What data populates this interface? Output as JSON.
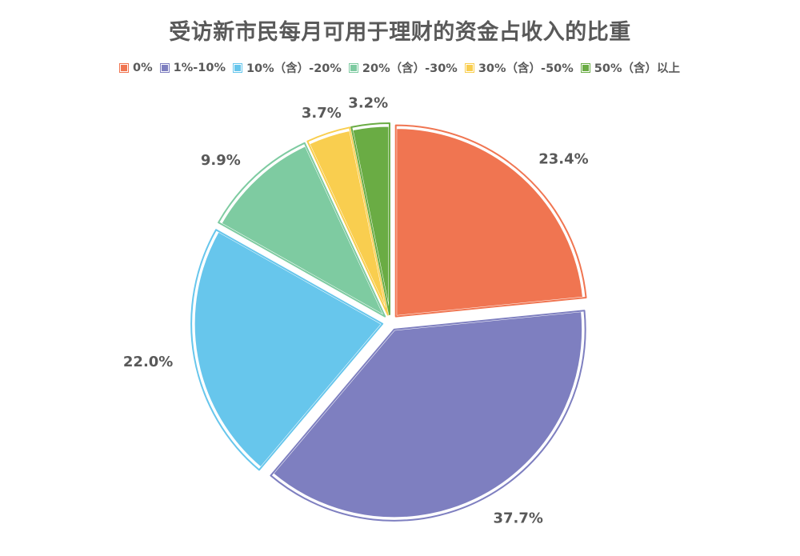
{
  "chart_data": {
    "type": "pie",
    "title": "受访新市民每月可用于理财的资金占收入的比重",
    "legend_position": "top",
    "categories": [
      "0%",
      "1%-10%",
      "10%（含）-20%",
      "20%（含）-30%",
      "30%（含）-50%",
      "50%（含）以上"
    ],
    "values": [
      23.4,
      37.7,
      22.0,
      9.9,
      3.7,
      3.2
    ],
    "value_labels": [
      "23.4%",
      "37.7%",
      "22.0%",
      "9.9%",
      "3.7%",
      "3.2%"
    ],
    "colors": [
      "#F07551",
      "#7E7FC0",
      "#67C6EC",
      "#7ECBA1",
      "#F9CE4F",
      "#6AAC44"
    ],
    "edge_colors": [
      "#F07551",
      "#7E7FC0",
      "#67C6EC",
      "#7ECBA1",
      "#F9CE4F",
      "#6AAC44"
    ],
    "exploded": true
  }
}
